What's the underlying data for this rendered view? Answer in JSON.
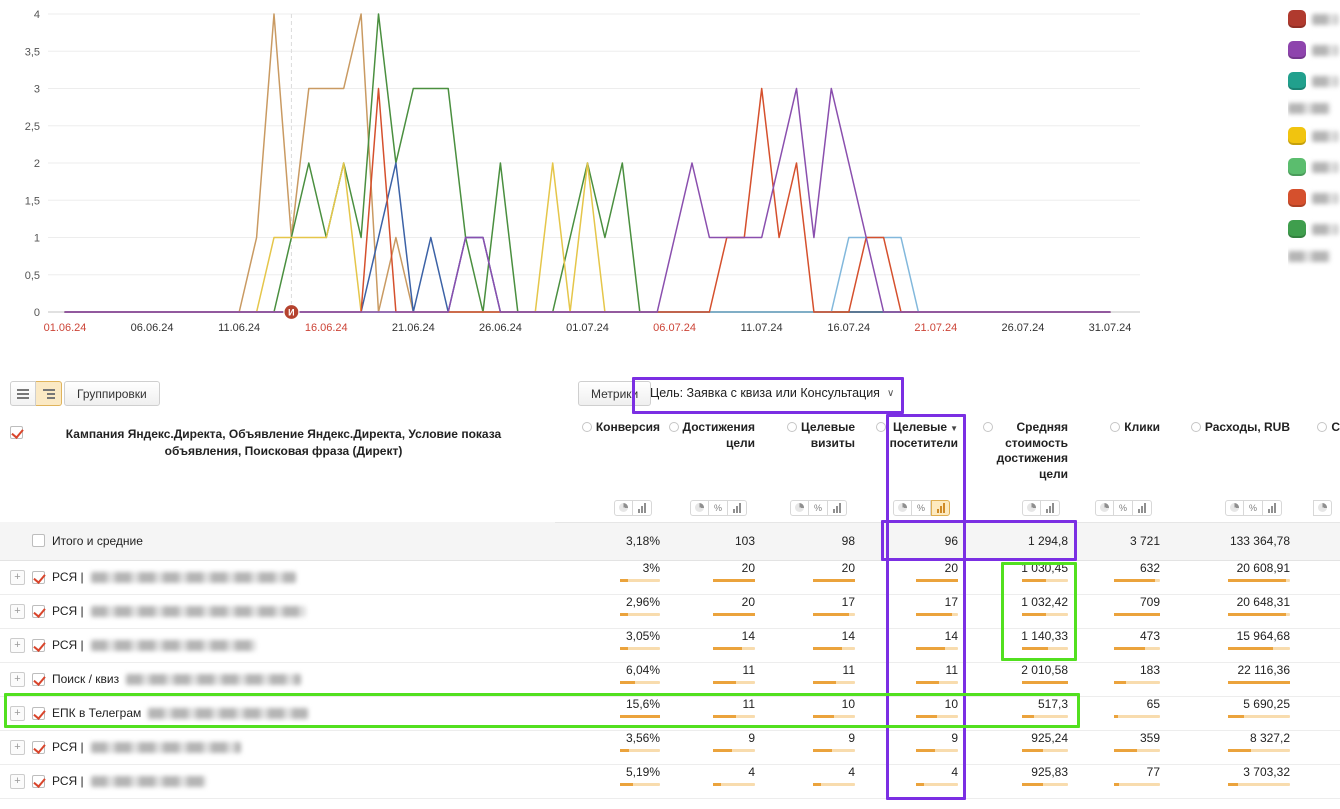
{
  "colors": {
    "annotation_purple": "#7b2fe3",
    "annotation_green": "#52e01f",
    "bar_fill": "#eba33c",
    "bar_track": "#f8dcae",
    "check": "#d9452c",
    "totals_bg": "#f5f5f5",
    "weekend_tick": "#cc4437",
    "marker": "#b5432f"
  },
  "glyphs": {
    "chevron": "∨",
    "sort_desc": "▼",
    "expand": "+",
    "percent": "%"
  },
  "toolbar": {
    "groupings_label": "Группировки",
    "metrics_label": "Метрики",
    "goal_label": "Цель: Заявка с квиза или Консультация"
  },
  "chart_data": {
    "type": "line",
    "title": "",
    "ylim": [
      0,
      4
    ],
    "x_range_days": 60,
    "grid": true,
    "y_ticks": [
      {
        "v": 0,
        "label": "0"
      },
      {
        "v": 0.5,
        "label": "0,5"
      },
      {
        "v": 1,
        "label": "1"
      },
      {
        "v": 1.5,
        "label": "1,5"
      },
      {
        "v": 2,
        "label": "2"
      },
      {
        "v": 2.5,
        "label": "2,5"
      },
      {
        "v": 3,
        "label": "3"
      },
      {
        "v": 3.5,
        "label": "3,5"
      },
      {
        "v": 4,
        "label": "4"
      }
    ],
    "x_ticks": [
      {
        "label": "01.06.24",
        "day": 0,
        "weekend": true
      },
      {
        "label": "06.06.24",
        "day": 5,
        "weekend": false
      },
      {
        "label": "11.06.24",
        "day": 10,
        "weekend": false
      },
      {
        "label": "16.06.24",
        "day": 15,
        "weekend": true
      },
      {
        "label": "21.06.24",
        "day": 20,
        "weekend": false
      },
      {
        "label": "26.06.24",
        "day": 25,
        "weekend": false
      },
      {
        "label": "01.07.24",
        "day": 30,
        "weekend": false
      },
      {
        "label": "06.07.24",
        "day": 35,
        "weendend": false,
        "weekend": true
      },
      {
        "label": "11.07.24",
        "day": 40,
        "weekend": false
      },
      {
        "label": "16.07.24",
        "day": 45,
        "weekend": false
      },
      {
        "label": "21.07.24",
        "day": 50,
        "weekend": true
      },
      {
        "label": "26.07.24",
        "day": 55,
        "weekend": false
      },
      {
        "label": "31.07.24",
        "day": 60,
        "weekend": false
      }
    ],
    "marker": {
      "day": 13,
      "label": "И"
    },
    "series": [
      {
        "name": "campaign-tan",
        "color": "#c99a62",
        "points": [
          [
            0,
            0
          ],
          [
            10,
            0
          ],
          [
            11,
            1
          ],
          [
            12,
            4
          ],
          [
            13,
            1
          ],
          [
            14,
            3
          ],
          [
            15,
            3
          ],
          [
            16,
            3
          ],
          [
            17,
            4
          ],
          [
            18,
            0
          ],
          [
            19,
            1
          ],
          [
            20,
            0
          ],
          [
            60,
            0
          ]
        ]
      },
      {
        "name": "campaign-green",
        "color": "#4a8f3f",
        "points": [
          [
            0,
            0
          ],
          [
            12,
            0
          ],
          [
            13,
            1
          ],
          [
            14,
            2
          ],
          [
            15,
            1
          ],
          [
            16,
            2
          ],
          [
            17,
            1
          ],
          [
            18,
            4
          ],
          [
            19,
            2
          ],
          [
            20,
            3
          ],
          [
            21,
            3
          ],
          [
            22,
            3
          ],
          [
            23,
            1
          ],
          [
            24,
            0
          ],
          [
            25,
            2
          ],
          [
            26,
            0
          ],
          [
            28,
            0
          ],
          [
            29,
            1
          ],
          [
            30,
            2
          ],
          [
            31,
            1
          ],
          [
            32,
            2
          ],
          [
            33,
            0
          ],
          [
            60,
            0
          ]
        ]
      },
      {
        "name": "campaign-yellow",
        "color": "#e5c64a",
        "points": [
          [
            0,
            0
          ],
          [
            11,
            0
          ],
          [
            12,
            1
          ],
          [
            13,
            1
          ],
          [
            14,
            1
          ],
          [
            15,
            1
          ],
          [
            16,
            2
          ],
          [
            17,
            0
          ],
          [
            27,
            0
          ],
          [
            28,
            2
          ],
          [
            29,
            0
          ],
          [
            30,
            2
          ],
          [
            31,
            0
          ],
          [
            60,
            0
          ]
        ]
      },
      {
        "name": "campaign-darkblue",
        "color": "#3c62a6",
        "points": [
          [
            0,
            0
          ],
          [
            17,
            0
          ],
          [
            18,
            1
          ],
          [
            19,
            2
          ],
          [
            20,
            0
          ],
          [
            21,
            1
          ],
          [
            22,
            0
          ],
          [
            23,
            1
          ],
          [
            24,
            1
          ],
          [
            25,
            0
          ],
          [
            60,
            0
          ]
        ]
      },
      {
        "name": "campaign-lightblue",
        "color": "#82b8dc",
        "points": [
          [
            0,
            0
          ],
          [
            44,
            0
          ],
          [
            45,
            1
          ],
          [
            46,
            1
          ],
          [
            47,
            1
          ],
          [
            48,
            1
          ],
          [
            49,
            0
          ],
          [
            60,
            0
          ]
        ]
      },
      {
        "name": "campaign-red",
        "color": "#d5502d",
        "points": [
          [
            0,
            0
          ],
          [
            17,
            0
          ],
          [
            18,
            3
          ],
          [
            19,
            0
          ],
          [
            37,
            0
          ],
          [
            38,
            1
          ],
          [
            39,
            1
          ],
          [
            40,
            3
          ],
          [
            41,
            1
          ],
          [
            42,
            2
          ],
          [
            43,
            0
          ],
          [
            45,
            0
          ],
          [
            46,
            1
          ],
          [
            47,
            1
          ],
          [
            48,
            0
          ],
          [
            60,
            0
          ]
        ]
      },
      {
        "name": "campaign-purple",
        "color": "#8a4fae",
        "points": [
          [
            0,
            0
          ],
          [
            22,
            0
          ],
          [
            23,
            1
          ],
          [
            24,
            1
          ],
          [
            25,
            0
          ],
          [
            34,
            0
          ],
          [
            35,
            1
          ],
          [
            36,
            2
          ],
          [
            37,
            1
          ],
          [
            38,
            1
          ],
          [
            39,
            1
          ],
          [
            40,
            1
          ],
          [
            41,
            2
          ],
          [
            42,
            3
          ],
          [
            43,
            1
          ],
          [
            44,
            3
          ],
          [
            45,
            2
          ],
          [
            46,
            1
          ],
          [
            47,
            0
          ],
          [
            60,
            0
          ]
        ]
      }
    ]
  },
  "legend": {
    "items": [
      {
        "color": "#b03a2e"
      },
      {
        "color": "#8e44ad"
      },
      {
        "color": "#21a08d"
      },
      {
        "color": null
      },
      {
        "color": "#f1c40f"
      },
      {
        "color": "#5bbd6e"
      },
      {
        "color": "#d5502d"
      },
      {
        "color": "#3f9e4d"
      },
      {
        "color": null
      }
    ]
  },
  "table": {
    "first_col_header": "Кампания Яндекс.Директа, Объявление Яндекс.Директа, Условие показа объявления, Поисковая фраза (Директ)",
    "columns": [
      {
        "lines": [
          "Конверсия"
        ],
        "icons": [
          "pie",
          "bars"
        ]
      },
      {
        "lines": [
          "Достижения",
          "цели"
        ],
        "icons": [
          "pie",
          "percent",
          "bars"
        ]
      },
      {
        "lines": [
          "Целевые",
          "визиты"
        ],
        "icons": [
          "pie",
          "percent",
          "bars"
        ]
      },
      {
        "lines": [
          "Целевые",
          "посетители"
        ],
        "icons": [
          "pie",
          "percent",
          "bars"
        ],
        "sorted": "desc",
        "selected": "bars"
      },
      {
        "lines": [
          "Средняя",
          "стоимость",
          "достижения",
          "цели"
        ],
        "icons": [
          "pie",
          "bars"
        ]
      },
      {
        "lines": [
          "Клики"
        ],
        "icons": [
          "pie",
          "percent",
          "bars"
        ]
      },
      {
        "lines": [
          "Расходы, RUB"
        ],
        "icons": [
          "pie",
          "percent",
          "bars"
        ]
      },
      {
        "lines": [
          "С"
        ],
        "icons": [
          "pie"
        ],
        "cut": true
      }
    ],
    "totals_row": {
      "label": "Итого и средние",
      "values": [
        "3,18%",
        "103",
        "98",
        "96",
        "1 294,8",
        "3 721",
        "133 364,78"
      ]
    },
    "rows": [
      {
        "prefix": "РСЯ |",
        "blur_width": 205,
        "values": [
          "3%",
          "20",
          "20",
          "20",
          "1 030,45",
          "632",
          "20 608,91"
        ]
      },
      {
        "prefix": "РСЯ |",
        "blur_width": 215,
        "values": [
          "2,96%",
          "20",
          "17",
          "17",
          "1 032,42",
          "709",
          "20 648,31"
        ]
      },
      {
        "prefix": "РСЯ |",
        "blur_width": 165,
        "values": [
          "3,05%",
          "14",
          "14",
          "14",
          "1 140,33",
          "473",
          "15 964,68"
        ]
      },
      {
        "prefix": "Поиск / квиз",
        "blur_width": 175,
        "values": [
          "6,04%",
          "11",
          "11",
          "11",
          "2 010,58",
          "183",
          "22 116,36"
        ]
      },
      {
        "prefix": "ЕПК в Телеграм",
        "blur_width": 160,
        "values": [
          "15,6%",
          "11",
          "10",
          "10",
          "517,3",
          "65",
          "5 690,25"
        ]
      },
      {
        "prefix": "РСЯ |",
        "blur_width": 150,
        "values": [
          "3,56%",
          "9",
          "9",
          "9",
          "925,24",
          "359",
          "8 327,2"
        ]
      },
      {
        "prefix": "РСЯ |",
        "blur_width": 115,
        "values": [
          "5,19%",
          "4",
          "4",
          "4",
          "925,83",
          "77",
          "3 703,32"
        ]
      }
    ]
  }
}
